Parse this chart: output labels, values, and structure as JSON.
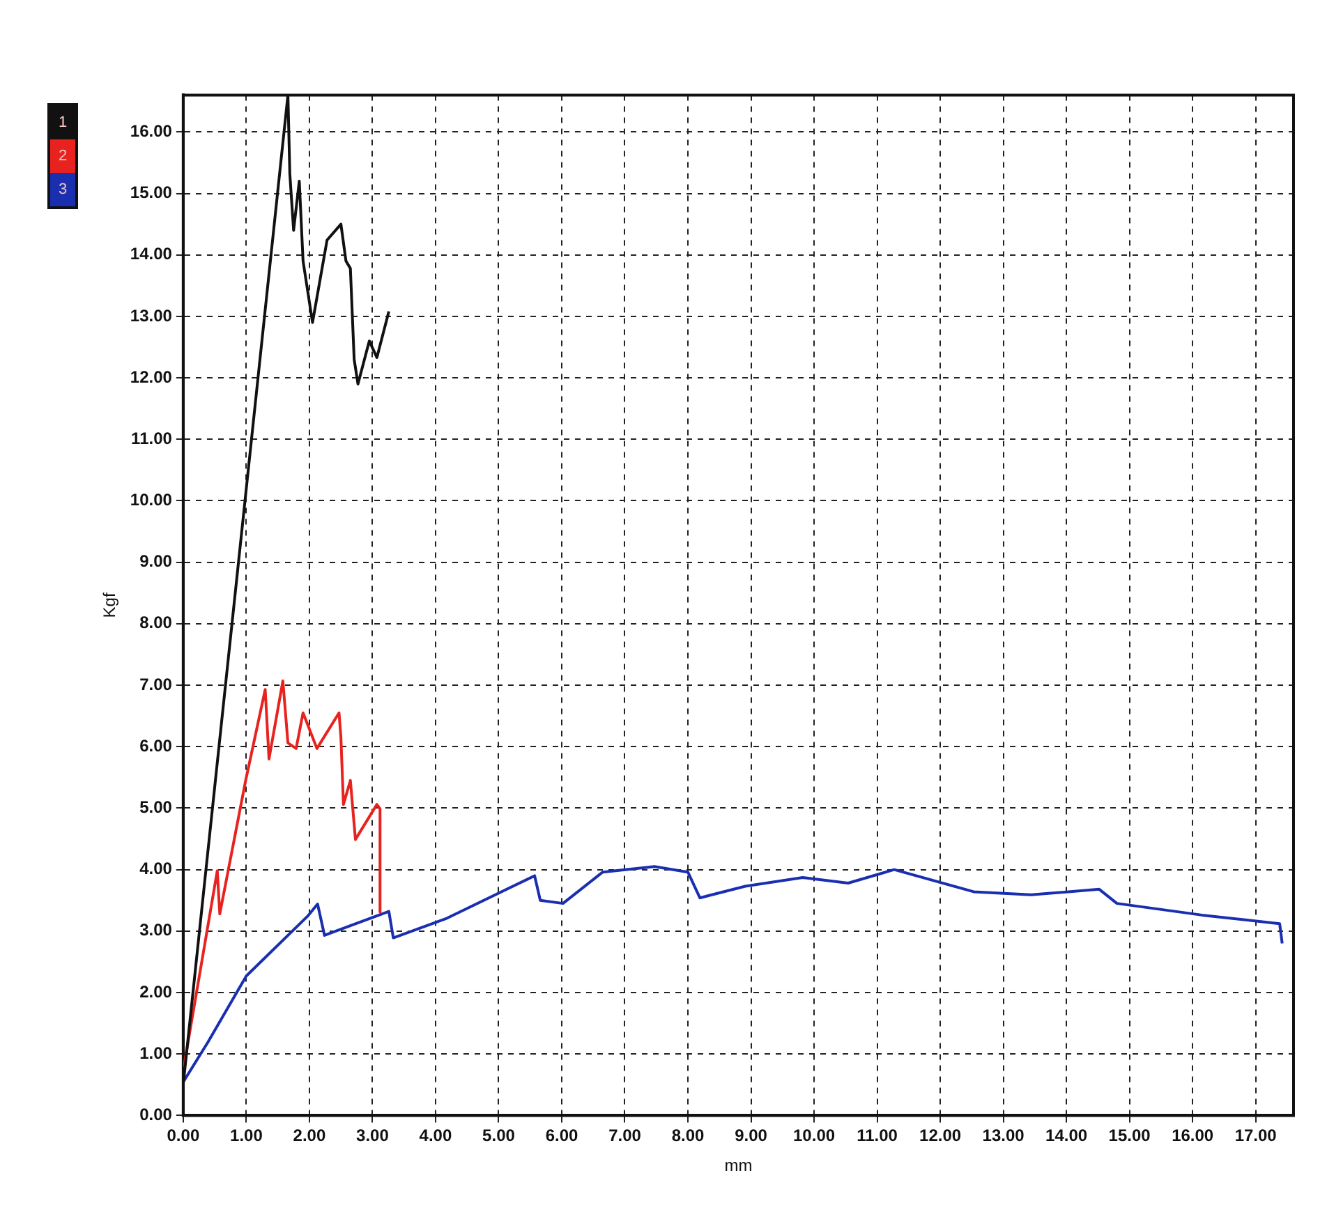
{
  "chart_data": {
    "type": "line",
    "xlabel": "mm",
    "ylabel": "Kgf",
    "xlim": [
      0,
      17.6
    ],
    "ylim": [
      0,
      16.6
    ],
    "xticks": [
      {
        "value": 0,
        "label": "0.00"
      },
      {
        "value": 1,
        "label": "1.00"
      },
      {
        "value": 2,
        "label": "2.00"
      },
      {
        "value": 3,
        "label": "3.00"
      },
      {
        "value": 4,
        "label": "4.00"
      },
      {
        "value": 5,
        "label": "5.00"
      },
      {
        "value": 6,
        "label": "6.00"
      },
      {
        "value": 7,
        "label": "7.00"
      },
      {
        "value": 8,
        "label": "8.00"
      },
      {
        "value": 9,
        "label": "9.00"
      },
      {
        "value": 10,
        "label": "10.00"
      },
      {
        "value": 11,
        "label": "11.00"
      },
      {
        "value": 12,
        "label": "12.00"
      },
      {
        "value": 13,
        "label": "13.00"
      },
      {
        "value": 14,
        "label": "14.00"
      },
      {
        "value": 15,
        "label": "15.00"
      },
      {
        "value": 16,
        "label": "16.00"
      },
      {
        "value": 17,
        "label": "17.00"
      }
    ],
    "yticks": [
      {
        "value": 0,
        "label": "0.00"
      },
      {
        "value": 1,
        "label": "1.00"
      },
      {
        "value": 2,
        "label": "2.00"
      },
      {
        "value": 3,
        "label": "3.00"
      },
      {
        "value": 4,
        "label": "4.00"
      },
      {
        "value": 5,
        "label": "5.00"
      },
      {
        "value": 6,
        "label": "6.00"
      },
      {
        "value": 7,
        "label": "7.00"
      },
      {
        "value": 8,
        "label": "8.00"
      },
      {
        "value": 9,
        "label": "9.00"
      },
      {
        "value": 10,
        "label": "10.00"
      },
      {
        "value": 11,
        "label": "11.00"
      },
      {
        "value": 12,
        "label": "12.00"
      },
      {
        "value": 13,
        "label": "13.00"
      },
      {
        "value": 14,
        "label": "14.00"
      },
      {
        "value": 15,
        "label": "15.00"
      },
      {
        "value": 16,
        "label": "16.00"
      }
    ],
    "grid": true,
    "legend": "top left",
    "marker": "none",
    "line_style": "solid",
    "series": [
      {
        "name": "1",
        "color": "#111111",
        "x": [
          0,
          1.66,
          1.69,
          1.75,
          1.84,
          1.9,
          2.05,
          2.28,
          2.5,
          2.58,
          2.65,
          2.71,
          2.77,
          2.95,
          3.07,
          3.26
        ],
        "values": [
          0.5,
          16.6,
          15.32,
          14.4,
          15.2,
          13.9,
          12.9,
          14.24,
          14.5,
          13.9,
          13.78,
          12.3,
          11.9,
          12.6,
          12.33,
          13.08
        ]
      },
      {
        "name": "2",
        "color": "#e8231f",
        "x": [
          0.01,
          0.54,
          0.58,
          0.99,
          1.3,
          1.36,
          1.58,
          1.66,
          1.79,
          1.9,
          2.12,
          2.47,
          2.5,
          2.54,
          2.65,
          2.73,
          3.07,
          3.12,
          3.12
        ],
        "values": [
          0.79,
          3.98,
          3.28,
          5.45,
          6.93,
          5.8,
          7.07,
          6.06,
          5.97,
          6.55,
          5.97,
          6.55,
          6.15,
          5.06,
          5.45,
          4.49,
          5.06,
          4.99,
          3.31
        ]
      },
      {
        "name": "3",
        "color": "#1a2fb0",
        "x": [
          0.01,
          0.39,
          1.0,
          1.97,
          2.13,
          2.24,
          3.26,
          3.33,
          4.16,
          5.57,
          5.66,
          6.02,
          6.65,
          7.47,
          8.0,
          8.19,
          8.91,
          9.82,
          10.54,
          11.27,
          12.53,
          13.44,
          14.52,
          14.8,
          16.15,
          17.38,
          17.42
        ],
        "values": [
          0.56,
          1.19,
          2.27,
          3.24,
          3.44,
          2.93,
          3.32,
          2.89,
          3.2,
          3.9,
          3.5,
          3.45,
          3.96,
          4.05,
          3.96,
          3.54,
          3.73,
          3.87,
          3.78,
          4.0,
          3.64,
          3.59,
          3.68,
          3.45,
          3.26,
          3.12,
          2.8
        ]
      }
    ]
  }
}
